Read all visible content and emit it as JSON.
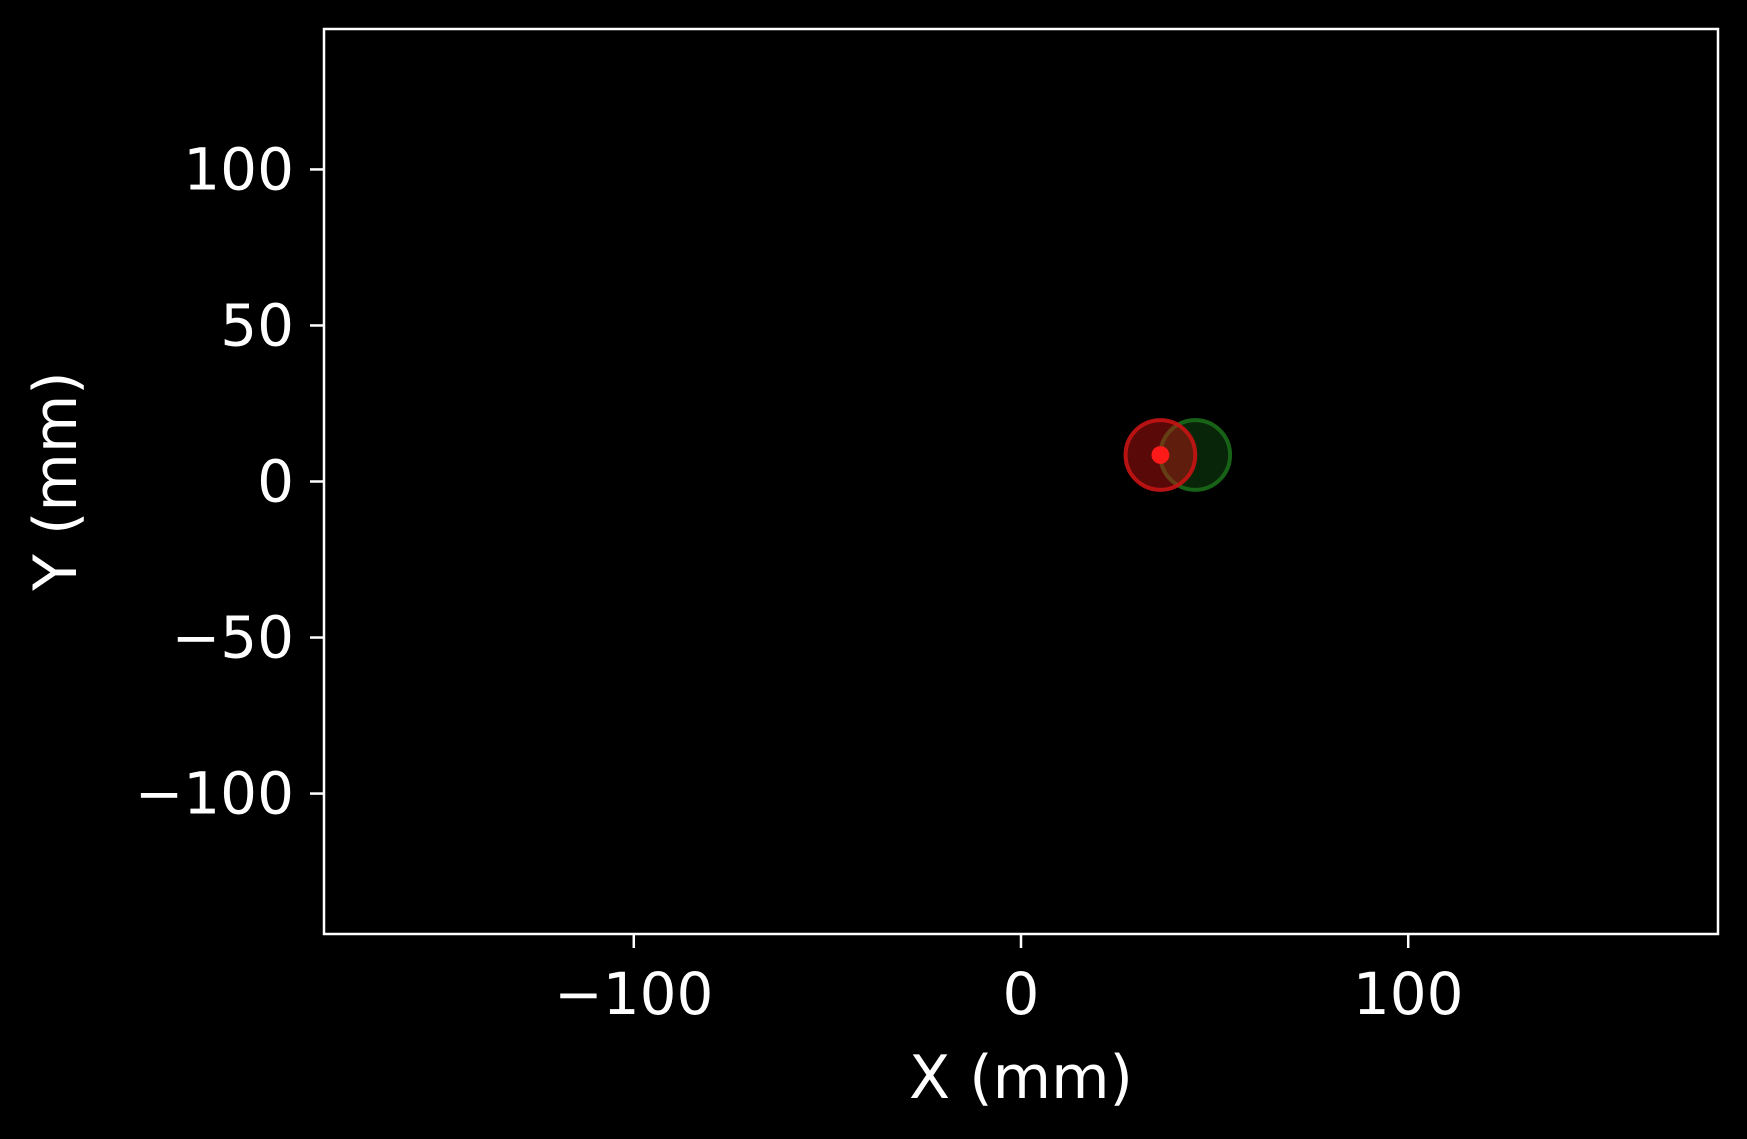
{
  "chart_data": {
    "type": "scatter",
    "title": "",
    "xlabel": "X (mm)",
    "ylabel": "Y (mm)",
    "xlim": [
      -180,
      180
    ],
    "ylim": [
      -145,
      145
    ],
    "xticks": [
      -100,
      0,
      100
    ],
    "yticks": [
      -100,
      -50,
      0,
      50,
      100
    ],
    "xtick_labels": [
      "−100",
      "0",
      "100"
    ],
    "ytick_labels": [
      "−100",
      "−50",
      "0",
      "50",
      "100"
    ],
    "grid": false,
    "background_color": "#000000",
    "axes_color": "#ffffff",
    "markers": [
      {
        "x": 45,
        "y": 8.5,
        "radius_mm": 9,
        "color": "#1a6b1a",
        "fill_opacity": 0.35,
        "kind": "ring"
      },
      {
        "x": 36,
        "y": 8.5,
        "radius_mm": 9,
        "color": "#c81414",
        "fill_opacity": 0.45,
        "kind": "ring"
      },
      {
        "x": 36,
        "y": 8.5,
        "radius_mm": 2.3,
        "color": "#ff1a1a",
        "fill_opacity": 1.0,
        "kind": "dot"
      }
    ]
  }
}
